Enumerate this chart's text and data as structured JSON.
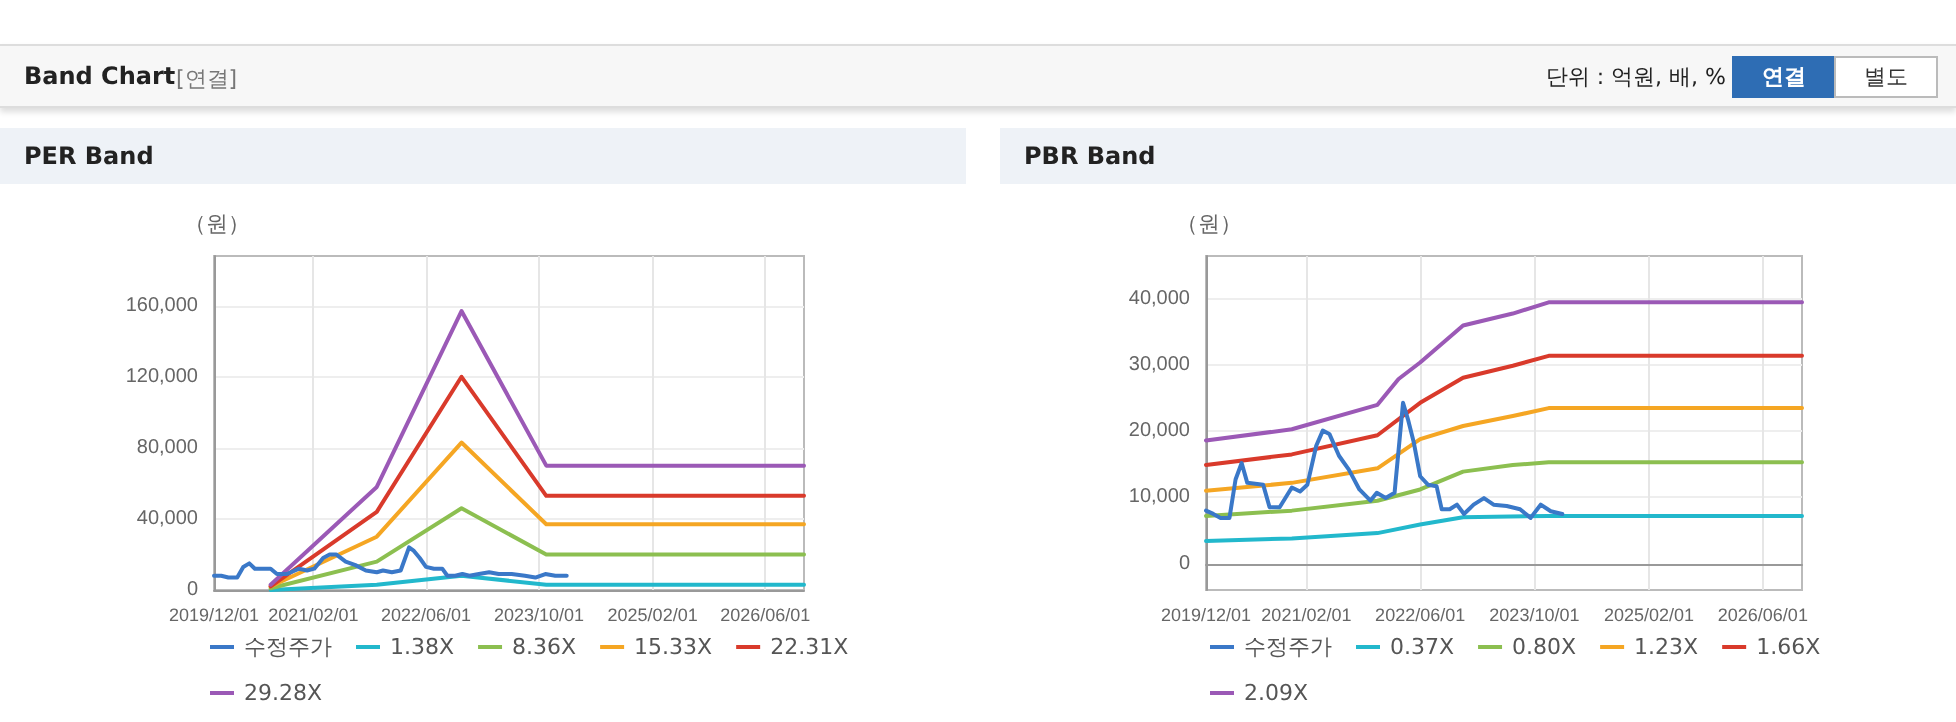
{
  "chart_data": [
    {
      "type": "line",
      "title": "PER Band",
      "ylabel": "（원）",
      "annotations": [
        "Band Chart",
        "[연결]",
        "단위 : 억원, 배, %",
        "연결",
        "별도"
      ],
      "grid": true,
      "legend": "bottom",
      "marker": "none",
      "line_style": "solid",
      "xlim": [
        "2019-12-01",
        "2026-11-15"
      ],
      "ylim": [
        0,
        188000
      ],
      "xticks": [
        {
          "value": "2019-12-01",
          "label": "2019/12/01"
        },
        {
          "value": "2021-02-01",
          "label": "2021/02/01"
        },
        {
          "value": "2022-06-01",
          "label": "2022/06/01"
        },
        {
          "value": "2023-10-01",
          "label": "2023/10/01"
        },
        {
          "value": "2025-02-01",
          "label": "2025/02/01"
        },
        {
          "value": "2026-06-01",
          "label": "2026/06/01"
        }
      ],
      "yticks": [
        {
          "value": 0,
          "label": "0"
        },
        {
          "value": 40000,
          "label": "40,000"
        },
        {
          "value": 80000,
          "label": "80,000"
        },
        {
          "value": 120000,
          "label": "120,000"
        },
        {
          "value": 160000,
          "label": "160,000"
        }
      ],
      "series": [
        {
          "name": "수정주가",
          "color": "#3a78c8",
          "x": [
            "2019-12-01",
            "2020-01-01",
            "2020-02-01",
            "2020-03-10",
            "2020-04-05",
            "2020-05-01",
            "2020-05-25",
            "2020-08-01",
            "2020-08-28",
            "2020-10-10",
            "2020-12-01",
            "2021-01-05",
            "2021-02-05",
            "2021-03-15",
            "2021-04-12",
            "2021-05-10",
            "2021-06-20",
            "2021-08-01",
            "2021-09-15",
            "2021-11-01",
            "2021-11-28",
            "2022-01-05",
            "2022-02-12",
            "2022-03-20",
            "2022-04-10",
            "2022-05-05",
            "2022-06-01",
            "2022-07-05",
            "2022-08-10",
            "2022-09-01",
            "2022-10-05",
            "2022-11-05",
            "2022-12-05",
            "2023-01-15",
            "2023-02-28",
            "2023-04-10",
            "2023-06-05",
            "2023-08-01",
            "2023-09-15",
            "2023-10-28",
            "2023-12-10",
            "2024-01-28"
          ],
          "values": [
            8000,
            8000,
            7000,
            7000,
            13000,
            15000,
            12000,
            12000,
            9000,
            9000,
            12000,
            11000,
            12000,
            18000,
            20000,
            20000,
            16000,
            14000,
            11000,
            10000,
            11000,
            10000,
            11000,
            24000,
            22000,
            18000,
            13000,
            12000,
            12000,
            8000,
            8000,
            9000,
            8000,
            9000,
            10000,
            9000,
            9000,
            8000,
            7000,
            9000,
            8000,
            8000
          ]
        },
        {
          "name": "1.38X",
          "color": "#22b8cc",
          "x": [
            "2020-08-01",
            "2021-11-01",
            "2022-11-01",
            "2023-11-01",
            "2026-11-15"
          ],
          "values": [
            0,
            3000,
            8000,
            3000,
            3000
          ]
        },
        {
          "name": "8.36X",
          "color": "#8cbf50",
          "x": [
            "2020-08-01",
            "2021-11-01",
            "2022-11-01",
            "2023-11-01",
            "2026-11-15"
          ],
          "values": [
            1000,
            16000,
            46000,
            20000,
            20000
          ]
        },
        {
          "name": "15.33X",
          "color": "#f5a623",
          "x": [
            "2020-08-01",
            "2021-11-01",
            "2022-11-01",
            "2023-11-01",
            "2026-11-15"
          ],
          "values": [
            2000,
            30000,
            83000,
            37000,
            37000
          ]
        },
        {
          "name": "22.31X",
          "color": "#d93a2b",
          "x": [
            "2020-08-01",
            "2021-11-01",
            "2022-11-01",
            "2023-11-01",
            "2026-11-15"
          ],
          "values": [
            2000,
            44000,
            120000,
            53000,
            53000
          ]
        },
        {
          "name": "29.28X",
          "color": "#9b59b6",
          "x": [
            "2020-08-01",
            "2021-11-01",
            "2022-11-01",
            "2023-11-01",
            "2026-11-15"
          ],
          "values": [
            3000,
            58000,
            157000,
            70000,
            70000
          ]
        }
      ]
    },
    {
      "type": "line",
      "title": "PBR Band",
      "ylabel": "（원）",
      "grid": true,
      "legend": "bottom",
      "marker": "none",
      "line_style": "solid",
      "xlim": [
        "2019-12-01",
        "2026-11-15"
      ],
      "ylim": [
        -4000,
        46500
      ],
      "xticks": [
        {
          "value": "2019-12-01",
          "label": "2019/12/01"
        },
        {
          "value": "2021-02-01",
          "label": "2021/02/01"
        },
        {
          "value": "2022-06-01",
          "label": "2022/06/01"
        },
        {
          "value": "2023-10-01",
          "label": "2023/10/01"
        },
        {
          "value": "2025-02-01",
          "label": "2025/02/01"
        },
        {
          "value": "2026-06-01",
          "label": "2026/06/01"
        }
      ],
      "yticks": [
        {
          "value": 0,
          "label": "0"
        },
        {
          "value": 10000,
          "label": "10,000"
        },
        {
          "value": 20000,
          "label": "20,000"
        },
        {
          "value": 30000,
          "label": "30,000"
        },
        {
          "value": 40000,
          "label": "40,000"
        }
      ],
      "series": [
        {
          "name": "수정주가",
          "color": "#3a78c8",
          "x": [
            "2019-12-01",
            "2020-01-01",
            "2020-02-01",
            "2020-03-10",
            "2020-04-05",
            "2020-05-01",
            "2020-05-25",
            "2020-08-01",
            "2020-08-28",
            "2020-10-10",
            "2020-12-01",
            "2021-01-05",
            "2021-02-05",
            "2021-03-15",
            "2021-04-12",
            "2021-05-10",
            "2021-06-20",
            "2021-08-01",
            "2021-09-15",
            "2021-11-01",
            "2021-11-28",
            "2022-01-05",
            "2022-02-12",
            "2022-03-20",
            "2022-04-10",
            "2022-05-05",
            "2022-06-01",
            "2022-07-05",
            "2022-08-10",
            "2022-09-01",
            "2022-10-05",
            "2022-11-05",
            "2022-12-05",
            "2023-01-15",
            "2023-02-28",
            "2023-04-10",
            "2023-06-05",
            "2023-08-01",
            "2023-09-15",
            "2023-10-28",
            "2023-12-10",
            "2024-01-28"
          ],
          "values": [
            8000,
            7500,
            6900,
            6900,
            12700,
            15200,
            12200,
            11900,
            8500,
            8500,
            11500,
            10900,
            11900,
            17800,
            20100,
            19600,
            16300,
            14200,
            11200,
            9500,
            10700,
            9900,
            10700,
            24300,
            21800,
            18300,
            13200,
            11900,
            11700,
            8200,
            8200,
            8900,
            7500,
            8900,
            9900,
            8900,
            8700,
            8200,
            6900,
            8900,
            7900,
            7500
          ]
        },
        {
          "name": "0.37X",
          "color": "#22b8cc",
          "x": [
            "2019-12-01",
            "2020-12-01",
            "2021-12-01",
            "2022-06-01",
            "2022-12-01",
            "2023-12-01",
            "2026-11-15"
          ],
          "values": [
            3400,
            3800,
            4600,
            5900,
            7000,
            7200,
            7200
          ]
        },
        {
          "name": "0.80X",
          "color": "#8cbf50",
          "x": [
            "2019-12-01",
            "2020-12-01",
            "2021-12-01",
            "2022-06-01",
            "2022-12-01",
            "2023-07-01",
            "2023-12-01",
            "2026-11-15"
          ],
          "values": [
            7200,
            8000,
            9500,
            11200,
            13900,
            14900,
            15300,
            15300
          ]
        },
        {
          "name": "1.23X",
          "color": "#f5a623",
          "x": [
            "2019-12-01",
            "2020-12-01",
            "2021-12-01",
            "2022-06-01",
            "2022-12-01",
            "2023-07-01",
            "2023-12-01",
            "2026-11-15"
          ],
          "values": [
            11000,
            12200,
            14400,
            18800,
            20800,
            22300,
            23500,
            23500
          ]
        },
        {
          "name": "1.66X",
          "color": "#d93a2b",
          "x": [
            "2019-12-01",
            "2020-12-01",
            "2021-12-01",
            "2022-06-01",
            "2022-12-01",
            "2023-07-01",
            "2023-12-01",
            "2026-11-15"
          ],
          "values": [
            14900,
            16500,
            19400,
            24300,
            28100,
            29900,
            31400,
            31400
          ]
        },
        {
          "name": "2.09X",
          "color": "#9b59b6",
          "x": [
            "2019-12-01",
            "2020-12-01",
            "2021-12-01",
            "2022-03-01",
            "2022-06-01",
            "2022-12-01",
            "2023-07-01",
            "2023-12-01",
            "2026-11-15"
          ],
          "values": [
            18600,
            20300,
            24000,
            27900,
            30400,
            36000,
            37800,
            39500,
            39500
          ]
        }
      ]
    }
  ]
}
